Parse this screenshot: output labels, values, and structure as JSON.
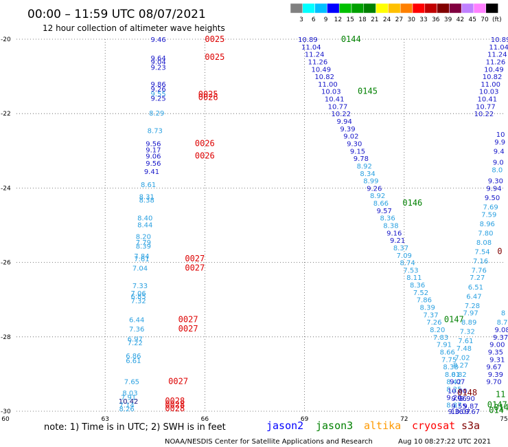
{
  "header": {
    "title": "00:00 – 11:59 UTC 08/07/2021",
    "subtitle": "12 hour collection of altimeter wave heights"
  },
  "colorbar": {
    "labels": [
      "3",
      "6",
      "9",
      "12",
      "15",
      "18",
      "21",
      "24",
      "27",
      "30",
      "33",
      "36",
      "39",
      "42",
      "45",
      "70",
      "(ft)"
    ],
    "colors": [
      "#808080",
      "#00ffff",
      "#00bfff",
      "#0000ff",
      "#00c000",
      "#00a000",
      "#008000",
      "#ffff00",
      "#ffc000",
      "#ff8000",
      "#ff0000",
      "#c00000",
      "#800000",
      "#800040",
      "#c080ff",
      "#ff80ff",
      "#000000"
    ]
  },
  "footer": {
    "note": "note: 1) Time is in UTC; 2) SWH is in feet",
    "credit": "NOAA/NESDIS Center for Satellite Applications and Research",
    "timestamp": "Aug 10 08:27:22 UTC 2021"
  },
  "legend": [
    {
      "name": "jason2",
      "color": "#0000ff"
    },
    {
      "name": "jason3",
      "color": "#008000"
    },
    {
      "name": "altika",
      "color": "#ff9900"
    },
    {
      "name": "cryosat",
      "color": "#ff0000"
    },
    {
      "name": "s3a",
      "color": "#800000"
    }
  ],
  "chart_data": {
    "type": "scatter",
    "xlim": [
      60,
      75
    ],
    "ylim": [
      -30,
      -20
    ],
    "x_ticks": [
      "60",
      "63",
      "66",
      "69",
      "72",
      "75"
    ],
    "y_ticks": [
      "-20",
      "-22",
      "-24",
      "-26",
      "-28",
      "-30"
    ],
    "grid": true,
    "points": [
      {
        "x": 64.6,
        "y": -20.0,
        "v": "9.46",
        "c": "#1515c8"
      },
      {
        "x": 64.6,
        "y": -20.5,
        "v": "9.64",
        "c": "#1515c8"
      },
      {
        "x": 64.6,
        "y": -20.6,
        "v": "9.04",
        "c": "#1515c8"
      },
      {
        "x": 64.6,
        "y": -20.75,
        "v": "9.23",
        "c": "#1515c8"
      },
      {
        "x": 64.6,
        "y": -21.2,
        "v": "9.86",
        "c": "#1515c8"
      },
      {
        "x": 64.6,
        "y": -21.33,
        "v": "9.26",
        "c": "#1515c8"
      },
      {
        "x": 64.6,
        "y": -21.46,
        "v": "9.55",
        "c": "#2aa0e0"
      },
      {
        "x": 64.6,
        "y": -21.58,
        "v": "9.25",
        "c": "#1515c8"
      },
      {
        "x": 64.55,
        "y": -21.98,
        "v": "8.29",
        "c": "#2aa0e0"
      },
      {
        "x": 64.5,
        "y": -22.45,
        "v": "8.73",
        "c": "#2aa0e0"
      },
      {
        "x": 64.45,
        "y": -22.8,
        "v": "9.56",
        "c": "#1515c8"
      },
      {
        "x": 64.45,
        "y": -22.97,
        "v": "9.17",
        "c": "#1515c8"
      },
      {
        "x": 64.45,
        "y": -23.13,
        "v": "9.06",
        "c": "#1515c8"
      },
      {
        "x": 64.45,
        "y": -23.33,
        "v": "9.56",
        "c": "#1515c8"
      },
      {
        "x": 64.4,
        "y": -23.55,
        "v": "9.41",
        "c": "#1515c8"
      },
      {
        "x": 64.3,
        "y": -23.9,
        "v": "8.61",
        "c": "#2aa0e0"
      },
      {
        "x": 64.25,
        "y": -24.22,
        "v": "8.31",
        "c": "#2aa0e0"
      },
      {
        "x": 64.25,
        "y": -24.32,
        "v": "8.38",
        "c": "#2aa0e0"
      },
      {
        "x": 64.2,
        "y": -24.8,
        "v": "8.40",
        "c": "#2aa0e0"
      },
      {
        "x": 64.2,
        "y": -24.98,
        "v": "8.44",
        "c": "#2aa0e0"
      },
      {
        "x": 64.15,
        "y": -25.3,
        "v": "8.20",
        "c": "#2aa0e0"
      },
      {
        "x": 64.15,
        "y": -25.45,
        "v": "7.79",
        "c": "#2aa0e0"
      },
      {
        "x": 64.15,
        "y": -25.55,
        "v": "8.39",
        "c": "#2aa0e0"
      },
      {
        "x": 64.1,
        "y": -25.82,
        "v": "7.84",
        "c": "#2aa0e0"
      },
      {
        "x": 64.1,
        "y": -25.9,
        "v": "7.61",
        "c": "#2aa0e0"
      },
      {
        "x": 64.05,
        "y": -26.15,
        "v": "7.04",
        "c": "#2aa0e0"
      },
      {
        "x": 64.05,
        "y": -26.62,
        "v": "7.33",
        "c": "#2aa0e0"
      },
      {
        "x": 64.0,
        "y": -26.82,
        "v": "7.06",
        "c": "#2aa0e0"
      },
      {
        "x": 64.0,
        "y": -26.9,
        "v": "6.85",
        "c": "#2aa0e0"
      },
      {
        "x": 64.0,
        "y": -27.02,
        "v": "7.32",
        "c": "#2aa0e0"
      },
      {
        "x": 63.95,
        "y": -27.53,
        "v": "6.44",
        "c": "#2aa0e0"
      },
      {
        "x": 63.95,
        "y": -27.78,
        "v": "7.36",
        "c": "#2aa0e0"
      },
      {
        "x": 63.9,
        "y": -28.05,
        "v": "6.97",
        "c": "#2aa0e0"
      },
      {
        "x": 63.9,
        "y": -28.15,
        "v": "7.22",
        "c": "#2aa0e0"
      },
      {
        "x": 63.85,
        "y": -28.5,
        "v": "6.86",
        "c": "#2aa0e0"
      },
      {
        "x": 63.85,
        "y": -28.63,
        "v": "6.61",
        "c": "#2aa0e0"
      },
      {
        "x": 63.8,
        "y": -29.2,
        "v": "7.65",
        "c": "#2aa0e0"
      },
      {
        "x": 63.75,
        "y": -29.5,
        "v": "8.03",
        "c": "#2aa0e0"
      },
      {
        "x": 63.7,
        "y": -29.62,
        "v": "7.91",
        "c": "#2aa0e0"
      },
      {
        "x": 63.7,
        "y": -29.72,
        "v": "10.42",
        "c": "#0a0a7a"
      },
      {
        "x": 63.65,
        "y": -29.82,
        "v": "7.14",
        "c": "#2aa0e0"
      },
      {
        "x": 63.65,
        "y": -29.93,
        "v": "8.26",
        "c": "#2aa0e0"
      },
      {
        "x": 69.1,
        "y": -20.0,
        "v": "10.89",
        "c": "#1515c8"
      },
      {
        "x": 69.2,
        "y": -20.2,
        "v": "11.04",
        "c": "#1515c8"
      },
      {
        "x": 69.3,
        "y": -20.4,
        "v": "11.24",
        "c": "#1515c8"
      },
      {
        "x": 69.4,
        "y": -20.6,
        "v": "11.26",
        "c": "#1515c8"
      },
      {
        "x": 69.5,
        "y": -20.8,
        "v": "10.49",
        "c": "#1515c8"
      },
      {
        "x": 69.6,
        "y": -21.0,
        "v": "10.82",
        "c": "#1515c8"
      },
      {
        "x": 69.7,
        "y": -21.2,
        "v": "11.00",
        "c": "#1515c8"
      },
      {
        "x": 69.8,
        "y": -21.4,
        "v": "10.03",
        "c": "#1515c8"
      },
      {
        "x": 69.9,
        "y": -21.6,
        "v": "10.41",
        "c": "#1515c8"
      },
      {
        "x": 70.0,
        "y": -21.8,
        "v": "10.77",
        "c": "#1515c8"
      },
      {
        "x": 70.1,
        "y": -22.0,
        "v": "10.22",
        "c": "#1515c8"
      },
      {
        "x": 70.2,
        "y": -22.2,
        "v": "9.94",
        "c": "#1515c8"
      },
      {
        "x": 70.3,
        "y": -22.4,
        "v": "9.39",
        "c": "#1515c8"
      },
      {
        "x": 70.4,
        "y": -22.6,
        "v": "9.02",
        "c": "#1515c8"
      },
      {
        "x": 70.5,
        "y": -22.8,
        "v": "9.30",
        "c": "#1515c8"
      },
      {
        "x": 70.6,
        "y": -23.0,
        "v": "9.15",
        "c": "#1515c8"
      },
      {
        "x": 70.7,
        "y": -23.2,
        "v": "9.78",
        "c": "#1515c8"
      },
      {
        "x": 70.8,
        "y": -23.4,
        "v": "8.92",
        "c": "#2aa0e0"
      },
      {
        "x": 70.9,
        "y": -23.6,
        "v": "8.34",
        "c": "#2aa0e0"
      },
      {
        "x": 71.0,
        "y": -23.8,
        "v": "8.99",
        "c": "#2aa0e0"
      },
      {
        "x": 71.1,
        "y": -24.0,
        "v": "9.26",
        "c": "#1515c8"
      },
      {
        "x": 71.2,
        "y": -24.2,
        "v": "8.92",
        "c": "#2aa0e0"
      },
      {
        "x": 71.3,
        "y": -24.4,
        "v": "8.66",
        "c": "#2aa0e0"
      },
      {
        "x": 71.4,
        "y": -24.6,
        "v": "9.57",
        "c": "#1515c8"
      },
      {
        "x": 71.5,
        "y": -24.8,
        "v": "8.36",
        "c": "#2aa0e0"
      },
      {
        "x": 71.6,
        "y": -25.0,
        "v": "8.38",
        "c": "#2aa0e0"
      },
      {
        "x": 71.7,
        "y": -25.2,
        "v": "9.16",
        "c": "#1515c8"
      },
      {
        "x": 71.8,
        "y": -25.4,
        "v": "9.21",
        "c": "#1515c8"
      },
      {
        "x": 71.9,
        "y": -25.6,
        "v": "8.37",
        "c": "#2aa0e0"
      },
      {
        "x": 72.0,
        "y": -25.8,
        "v": "7.09",
        "c": "#2aa0e0"
      },
      {
        "x": 72.1,
        "y": -26.0,
        "v": "8.74",
        "c": "#2aa0e0"
      },
      {
        "x": 72.2,
        "y": -26.2,
        "v": "7.53",
        "c": "#2aa0e0"
      },
      {
        "x": 72.3,
        "y": -26.4,
        "v": "8.11",
        "c": "#2aa0e0"
      },
      {
        "x": 72.4,
        "y": -26.6,
        "v": "8.36",
        "c": "#2aa0e0"
      },
      {
        "x": 72.5,
        "y": -26.8,
        "v": "7.52",
        "c": "#2aa0e0"
      },
      {
        "x": 72.6,
        "y": -27.0,
        "v": "7.86",
        "c": "#2aa0e0"
      },
      {
        "x": 72.7,
        "y": -27.2,
        "v": "8.39",
        "c": "#2aa0e0"
      },
      {
        "x": 72.8,
        "y": -27.4,
        "v": "7.37",
        "c": "#2aa0e0"
      },
      {
        "x": 72.9,
        "y": -27.6,
        "v": "7.26",
        "c": "#2aa0e0"
      },
      {
        "x": 73.0,
        "y": -27.8,
        "v": "8.20",
        "c": "#2aa0e0"
      },
      {
        "x": 73.1,
        "y": -28.0,
        "v": "7.83",
        "c": "#2aa0e0"
      },
      {
        "x": 73.2,
        "y": -28.2,
        "v": "7.91",
        "c": "#2aa0e0"
      },
      {
        "x": 73.3,
        "y": -28.4,
        "v": "8.66",
        "c": "#2aa0e0"
      },
      {
        "x": 73.35,
        "y": -28.6,
        "v": "7.75",
        "c": "#2aa0e0"
      },
      {
        "x": 73.4,
        "y": -28.8,
        "v": "8.38",
        "c": "#2aa0e0"
      },
      {
        "x": 73.45,
        "y": -29.0,
        "v": "8.01",
        "c": "#2aa0e0"
      },
      {
        "x": 73.5,
        "y": -29.2,
        "v": "8.42",
        "c": "#2aa0e0"
      },
      {
        "x": 73.5,
        "y": -29.4,
        "v": "8.25",
        "c": "#2aa0e0"
      },
      {
        "x": 73.5,
        "y": -29.62,
        "v": "9.20",
        "c": "#1515c8"
      },
      {
        "x": 73.5,
        "y": -29.82,
        "v": "8.87",
        "c": "#2aa0e0"
      },
      {
        "x": 73.55,
        "y": -30.0,
        "v": "9.36",
        "c": "#1515c8"
      },
      {
        "x": 74.9,
        "y": -20.0,
        "v": "10.89",
        "c": "#1515c8"
      },
      {
        "x": 74.85,
        "y": -20.2,
        "v": "11.04",
        "c": "#1515c8"
      },
      {
        "x": 74.8,
        "y": -20.4,
        "v": "11.24",
        "c": "#1515c8"
      },
      {
        "x": 74.75,
        "y": -20.6,
        "v": "11.26",
        "c": "#1515c8"
      },
      {
        "x": 74.7,
        "y": -20.8,
        "v": "10.49",
        "c": "#1515c8"
      },
      {
        "x": 74.65,
        "y": -21.0,
        "v": "10.82",
        "c": "#1515c8"
      },
      {
        "x": 74.6,
        "y": -21.2,
        "v": "11.00",
        "c": "#1515c8"
      },
      {
        "x": 74.55,
        "y": -21.4,
        "v": "10.03",
        "c": "#1515c8"
      },
      {
        "x": 74.5,
        "y": -21.6,
        "v": "10.41",
        "c": "#1515c8"
      },
      {
        "x": 74.45,
        "y": -21.8,
        "v": "10.77",
        "c": "#1515c8"
      },
      {
        "x": 74.4,
        "y": -22.0,
        "v": "10.22",
        "c": "#1515c8"
      },
      {
        "x": 74.9,
        "y": -22.55,
        "v": "10",
        "c": "#1515c8"
      },
      {
        "x": 74.88,
        "y": -22.75,
        "v": "9.9",
        "c": "#1515c8"
      },
      {
        "x": 74.85,
        "y": -23.0,
        "v": "9.4",
        "c": "#1515c8"
      },
      {
        "x": 74.83,
        "y": -23.3,
        "v": "9.0",
        "c": "#1515c8"
      },
      {
        "x": 74.8,
        "y": -23.5,
        "v": "8.0",
        "c": "#2aa0e0"
      },
      {
        "x": 74.75,
        "y": -23.8,
        "v": "9.30",
        "c": "#1515c8"
      },
      {
        "x": 74.7,
        "y": -24.0,
        "v": "9.94",
        "c": "#1515c8"
      },
      {
        "x": 74.65,
        "y": -24.25,
        "v": "9.50",
        "c": "#1515c8"
      },
      {
        "x": 74.6,
        "y": -24.5,
        "v": "7.69",
        "c": "#2aa0e0"
      },
      {
        "x": 74.55,
        "y": -24.7,
        "v": "7.59",
        "c": "#2aa0e0"
      },
      {
        "x": 74.5,
        "y": -24.95,
        "v": "8.96",
        "c": "#2aa0e0"
      },
      {
        "x": 74.45,
        "y": -25.2,
        "v": "7.80",
        "c": "#2aa0e0"
      },
      {
        "x": 74.4,
        "y": -25.45,
        "v": "8.08",
        "c": "#2aa0e0"
      },
      {
        "x": 74.35,
        "y": -25.7,
        "v": "7.54",
        "c": "#2aa0e0"
      },
      {
        "x": 74.3,
        "y": -25.95,
        "v": "7.16",
        "c": "#2aa0e0"
      },
      {
        "x": 74.25,
        "y": -26.2,
        "v": "7.76",
        "c": "#2aa0e0"
      },
      {
        "x": 74.2,
        "y": -26.4,
        "v": "7.27",
        "c": "#2aa0e0"
      },
      {
        "x": 74.15,
        "y": -26.65,
        "v": "6.51",
        "c": "#2aa0e0"
      },
      {
        "x": 74.1,
        "y": -26.9,
        "v": "6.47",
        "c": "#2aa0e0"
      },
      {
        "x": 74.05,
        "y": -27.15,
        "v": "7.28",
        "c": "#2aa0e0"
      },
      {
        "x": 74.0,
        "y": -27.35,
        "v": "7.97",
        "c": "#2aa0e0"
      },
      {
        "x": 73.95,
        "y": -27.6,
        "v": "8.89",
        "c": "#2aa0e0"
      },
      {
        "x": 73.9,
        "y": -27.85,
        "v": "7.32",
        "c": "#2aa0e0"
      },
      {
        "x": 73.85,
        "y": -28.1,
        "v": "7.61",
        "c": "#2aa0e0"
      },
      {
        "x": 73.8,
        "y": -28.3,
        "v": "7.48",
        "c": "#2aa0e0"
      },
      {
        "x": 73.75,
        "y": -28.55,
        "v": "7.02",
        "c": "#2aa0e0"
      },
      {
        "x": 73.7,
        "y": -28.75,
        "v": "8.27",
        "c": "#2aa0e0"
      },
      {
        "x": 73.65,
        "y": -29.0,
        "v": "8.82",
        "c": "#2aa0e0"
      },
      {
        "x": 73.6,
        "y": -29.2,
        "v": "9.07",
        "c": "#1515c8"
      },
      {
        "x": 73.6,
        "y": -29.45,
        "v": "10.00",
        "c": "#1515c8"
      },
      {
        "x": 73.65,
        "y": -29.65,
        "v": "9.96",
        "c": "#1515c8"
      },
      {
        "x": 73.65,
        "y": -29.85,
        "v": "9.55",
        "c": "#1515c8"
      },
      {
        "x": 73.7,
        "y": -30.0,
        "v": "10.07",
        "c": "#1515c8"
      },
      {
        "x": 74.8,
        "y": -28.2,
        "v": "9.00",
        "c": "#1515c8"
      },
      {
        "x": 74.75,
        "y": -28.4,
        "v": "9.35",
        "c": "#1515c8"
      },
      {
        "x": 74.8,
        "y": -28.6,
        "v": "9.31",
        "c": "#1515c8"
      },
      {
        "x": 74.7,
        "y": -28.8,
        "v": "9.67",
        "c": "#1515c8"
      },
      {
        "x": 74.75,
        "y": -29.0,
        "v": "9.39",
        "c": "#1515c8"
      },
      {
        "x": 74.7,
        "y": -29.2,
        "v": "9.70",
        "c": "#1515c8"
      },
      {
        "x": 74.9,
        "y": -28.0,
        "v": "9.37",
        "c": "#1515c8"
      },
      {
        "x": 74.95,
        "y": -27.8,
        "v": "9.08",
        "c": "#1515c8"
      },
      {
        "x": 74.95,
        "y": -27.6,
        "v": "8.7",
        "c": "#2aa0e0"
      },
      {
        "x": 74.98,
        "y": -27.35,
        "v": "8",
        "c": "#2aa0e0"
      },
      {
        "x": 73.9,
        "y": -29.65,
        "v": "9.90",
        "c": "#1515c8"
      },
      {
        "x": 74.0,
        "y": -29.85,
        "v": "9.87",
        "c": "#1515c8"
      },
      {
        "x": 74.05,
        "y": -30.0,
        "v": "9.67",
        "c": "#1515c8"
      }
    ],
    "tags": [
      {
        "x": 66.0,
        "y": -20.0,
        "t": "0025",
        "c": "#dd0000"
      },
      {
        "x": 66.0,
        "y": -20.48,
        "t": "0025",
        "c": "#dd0000"
      },
      {
        "x": 65.8,
        "y": -21.48,
        "t": "0025",
        "c": "#dd0000"
      },
      {
        "x": 65.8,
        "y": -21.56,
        "t": "0026",
        "c": "#dd0000"
      },
      {
        "x": 65.7,
        "y": -22.8,
        "t": "0026",
        "c": "#dd0000"
      },
      {
        "x": 65.7,
        "y": -23.13,
        "t": "0026",
        "c": "#dd0000"
      },
      {
        "x": 65.4,
        "y": -25.9,
        "t": "0027",
        "c": "#dd0000"
      },
      {
        "x": 65.4,
        "y": -26.15,
        "t": "0027",
        "c": "#dd0000"
      },
      {
        "x": 65.2,
        "y": -27.53,
        "t": "0027",
        "c": "#dd0000"
      },
      {
        "x": 65.2,
        "y": -27.78,
        "t": "0027",
        "c": "#dd0000"
      },
      {
        "x": 64.9,
        "y": -29.2,
        "t": "0027",
        "c": "#dd0000"
      },
      {
        "x": 64.8,
        "y": -29.72,
        "t": "0028",
        "c": "#dd0000"
      },
      {
        "x": 64.8,
        "y": -29.82,
        "t": "0028",
        "c": "#dd0000"
      },
      {
        "x": 64.8,
        "y": -29.93,
        "t": "0028",
        "c": "#dd0000"
      },
      {
        "x": 70.1,
        "y": -20.0,
        "t": "0144",
        "c": "#008000"
      },
      {
        "x": 70.6,
        "y": -21.4,
        "t": "0145",
        "c": "#008000"
      },
      {
        "x": 71.95,
        "y": -24.4,
        "t": "0146",
        "c": "#008000"
      },
      {
        "x": 73.2,
        "y": -27.53,
        "t": "0147",
        "c": "#008000"
      },
      {
        "x": 74.8,
        "y": -25.7,
        "t": "0",
        "c": "#800000"
      },
      {
        "x": 73.6,
        "y": -29.5,
        "t": "0148",
        "c": "#800000"
      },
      {
        "x": 74.75,
        "y": -29.55,
        "t": "11",
        "c": "#008000"
      },
      {
        "x": 74.5,
        "y": -29.82,
        "t": "0147",
        "c": "#008000"
      },
      {
        "x": 74.55,
        "y": -29.97,
        "t": "014",
        "c": "#008000"
      },
      {
        "x": 74.7,
        "y": -29.9,
        "t": "0147",
        "c": "#008000"
      }
    ]
  }
}
